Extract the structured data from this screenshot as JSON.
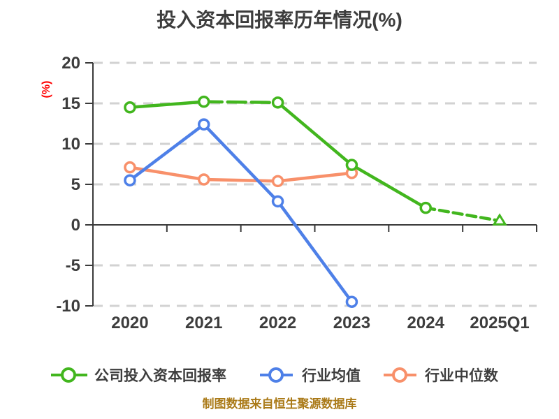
{
  "title": "投入资本回报率历年情况(%)",
  "caption": "制图数据来自恒生聚源数据库",
  "colors": {
    "title": "#3d3d3d",
    "tick_labels": "#3d3d3d",
    "y_axis_label": "#ff0000",
    "caption": "#aa7a18",
    "gridline": "#d2d2d2",
    "axis": "#3a3a3a",
    "company_roic": "#42b61e",
    "industry_mean": "#4e80e8",
    "industry_median": "#f8906a"
  },
  "chart_data": {
    "type": "line",
    "title": "投入资本回报率历年情况(%)",
    "xlabel": "",
    "ylabel": "(%)",
    "categories": [
      "2020",
      "2021",
      "2022",
      "2023",
      "2024",
      "2025Q1"
    ],
    "y_ticks": [
      20,
      15,
      10,
      5,
      0,
      -5,
      -10
    ],
    "ylim": [
      -10,
      20
    ],
    "grid": "horizontal-dashed",
    "legend_position": "bottom",
    "series": [
      {
        "name": "公司投入资本回报率",
        "color": "#42b61e",
        "marker": "circle",
        "last_marker": "triangle",
        "line_style": "partially-dashed",
        "values": [
          14.5,
          15.2,
          15.1,
          7.4,
          2.1,
          0.5
        ]
      },
      {
        "name": "行业均值",
        "color": "#4e80e8",
        "marker": "circle",
        "line_style": "solid",
        "values": [
          5.5,
          12.4,
          2.9,
          -9.5
        ]
      },
      {
        "name": "行业中位数",
        "color": "#f8906a",
        "marker": "circle",
        "line_style": "solid",
        "values": [
          7.1,
          5.6,
          5.4,
          6.4
        ]
      }
    ],
    "source_note": "制图数据来自恒生聚源数据库"
  }
}
